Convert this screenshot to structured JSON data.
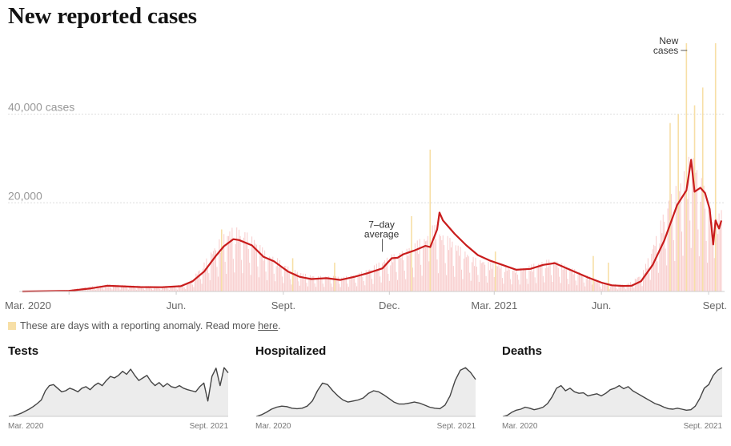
{
  "title": "New reported cases",
  "note": {
    "text": "These are days with a reporting anomaly. Read more ",
    "link": "here",
    "end": ".",
    "swatch_color": "#f7dfa6"
  },
  "colors": {
    "bars": "#f8cccc",
    "anomaly": "#f7dfa6",
    "average_line": "#c91c1c",
    "mini_line": "#444444",
    "mini_fill": "#ececec",
    "gridline": "#dddddd"
  },
  "chart_data": [
    {
      "type": "line",
      "title": "New reported cases",
      "x_domain": [
        "2020-01-21",
        "2021-09-12"
      ],
      "ylim": [
        0,
        56000
      ],
      "y_ticks": [
        {
          "value": 20000,
          "label": "20,000"
        },
        {
          "value": 40000,
          "label": "40,000 cases"
        }
      ],
      "x_ticks": [
        {
          "date": "2020-03-01",
          "label": "Mar. 2020"
        },
        {
          "date": "2020-06-01",
          "label": "Jun."
        },
        {
          "date": "2020-09-01",
          "label": "Sept."
        },
        {
          "date": "2020-12-01",
          "label": "Dec."
        },
        {
          "date": "2021-03-01",
          "label": "Mar. 2021"
        },
        {
          "date": "2021-06-01",
          "label": "Jun."
        },
        {
          "date": "2021-09-01",
          "label": "Sept."
        }
      ],
      "annotations": [
        {
          "lines": [
            "7–day",
            "average"
          ],
          "target_date": "2020-11-25",
          "target_value": 8600
        },
        {
          "lines": [
            "New",
            "cases"
          ],
          "target_date": "2021-08-15",
          "target_value": 56000
        }
      ],
      "series": [
        {
          "name": "New cases",
          "kind": "bars",
          "points": [
            [
              "2020-01-21",
              0
            ],
            [
              "2020-03-01",
              300
            ],
            [
              "2020-03-15",
              900
            ],
            [
              "2020-03-28",
              1200
            ],
            [
              "2020-04-06",
              1400
            ],
            [
              "2020-04-25",
              1150
            ],
            [
              "2020-05-15",
              1000
            ],
            [
              "2020-05-31",
              1100
            ],
            [
              "2020-06-12",
              1700
            ],
            [
              "2020-06-25",
              5500
            ],
            [
              "2020-07-05",
              9000
            ],
            [
              "2020-07-12",
              11000
            ],
            [
              "2020-07-20",
              12300
            ],
            [
              "2020-07-28",
              11800
            ],
            [
              "2020-08-08",
              10000
            ],
            [
              "2020-08-18",
              7200
            ],
            [
              "2020-08-25",
              6600
            ],
            [
              "2020-09-05",
              4800
            ],
            [
              "2020-09-18",
              3400
            ],
            [
              "2020-10-01",
              2900
            ],
            [
              "2020-10-10",
              3000
            ],
            [
              "2020-10-22",
              2800
            ],
            [
              "2020-11-01",
              3200
            ],
            [
              "2020-11-10",
              4000
            ],
            [
              "2020-11-20",
              5200
            ],
            [
              "2020-12-01",
              6800
            ],
            [
              "2020-12-08",
              7400
            ],
            [
              "2020-12-15",
              7900
            ],
            [
              "2020-12-24",
              9500
            ],
            [
              "2021-01-02",
              10600
            ],
            [
              "2021-01-08",
              12800
            ],
            [
              "2021-01-15",
              11000
            ],
            [
              "2021-01-22",
              10200
            ],
            [
              "2021-02-02",
              8000
            ],
            [
              "2021-02-12",
              6400
            ],
            [
              "2021-02-25",
              5600
            ],
            [
              "2021-03-10",
              5000
            ],
            [
              "2021-03-20",
              4300
            ],
            [
              "2021-04-01",
              5000
            ],
            [
              "2021-04-10",
              5700
            ],
            [
              "2021-04-20",
              6200
            ],
            [
              "2021-05-01",
              5000
            ],
            [
              "2021-05-15",
              3600
            ],
            [
              "2021-06-01",
              1700
            ],
            [
              "2021-06-10",
              1400
            ],
            [
              "2021-06-18",
              1300
            ],
            [
              "2021-06-25",
              1600
            ],
            [
              "2021-07-06",
              3500
            ],
            [
              "2021-07-14",
              8000
            ],
            [
              "2021-07-20",
              12000
            ],
            [
              "2021-07-28",
              17500
            ],
            [
              "2021-08-04",
              20000
            ],
            [
              "2021-08-10",
              23000
            ],
            [
              "2021-08-14",
              24000
            ],
            [
              "2021-08-17",
              28000
            ],
            [
              "2021-08-22",
              24000
            ],
            [
              "2021-08-28",
              20000
            ],
            [
              "2021-09-01",
              18000
            ],
            [
              "2021-09-05",
              12000
            ],
            [
              "2021-09-12",
              16000
            ]
          ],
          "anomalies": [
            [
              "2020-07-10",
              14000
            ],
            [
              "2020-09-09",
              7500
            ],
            [
              "2020-10-15",
              6500
            ],
            [
              "2020-12-20",
              17000
            ],
            [
              "2021-01-05",
              32000
            ],
            [
              "2021-03-02",
              9000
            ],
            [
              "2021-05-25",
              8000
            ],
            [
              "2021-06-07",
              6500
            ],
            [
              "2021-07-30",
              38000
            ],
            [
              "2021-08-06",
              40000
            ],
            [
              "2021-08-13",
              56000
            ],
            [
              "2021-08-20",
              42000
            ],
            [
              "2021-08-27",
              46000
            ],
            [
              "2021-09-07",
              56000
            ]
          ]
        },
        {
          "name": "7–day average",
          "kind": "line",
          "points": [
            [
              "2020-01-21",
              0
            ],
            [
              "2020-03-01",
              150
            ],
            [
              "2020-03-20",
              700
            ],
            [
              "2020-04-03",
              1300
            ],
            [
              "2020-04-12",
              1200
            ],
            [
              "2020-05-01",
              1000
            ],
            [
              "2020-05-20",
              950
            ],
            [
              "2020-06-05",
              1200
            ],
            [
              "2020-06-15",
              2300
            ],
            [
              "2020-06-25",
              4500
            ],
            [
              "2020-07-05",
              8000
            ],
            [
              "2020-07-12",
              10200
            ],
            [
              "2020-07-20",
              11800
            ],
            [
              "2020-07-25",
              11600
            ],
            [
              "2020-08-05",
              10400
            ],
            [
              "2020-08-15",
              7800
            ],
            [
              "2020-08-24",
              6800
            ],
            [
              "2020-09-05",
              4500
            ],
            [
              "2020-09-15",
              3300
            ],
            [
              "2020-09-25",
              2800
            ],
            [
              "2020-10-08",
              3000
            ],
            [
              "2020-10-20",
              2600
            ],
            [
              "2020-11-01",
              3300
            ],
            [
              "2020-11-12",
              4100
            ],
            [
              "2020-11-25",
              5200
            ],
            [
              "2020-12-03",
              7500
            ],
            [
              "2020-12-08",
              7600
            ],
            [
              "2020-12-13",
              8400
            ],
            [
              "2020-12-22",
              9200
            ],
            [
              "2021-01-01",
              10300
            ],
            [
              "2021-01-05",
              10000
            ],
            [
              "2021-01-11",
              14000
            ],
            [
              "2021-01-13",
              17800
            ],
            [
              "2021-01-16",
              16000
            ],
            [
              "2021-01-26",
              13000
            ],
            [
              "2021-02-05",
              10400
            ],
            [
              "2021-02-15",
              8200
            ],
            [
              "2021-02-25",
              7000
            ],
            [
              "2021-03-08",
              6000
            ],
            [
              "2021-03-20",
              4900
            ],
            [
              "2021-04-01",
              5100
            ],
            [
              "2021-04-12",
              6000
            ],
            [
              "2021-04-22",
              6400
            ],
            [
              "2021-05-05",
              4900
            ],
            [
              "2021-05-20",
              3200
            ],
            [
              "2021-06-01",
              2000
            ],
            [
              "2021-06-10",
              1400
            ],
            [
              "2021-06-20",
              1250
            ],
            [
              "2021-06-27",
              1300
            ],
            [
              "2021-07-05",
              2300
            ],
            [
              "2021-07-15",
              6000
            ],
            [
              "2021-07-25",
              11500
            ],
            [
              "2021-08-05",
              19500
            ],
            [
              "2021-08-13",
              22800
            ],
            [
              "2021-08-17",
              29700
            ],
            [
              "2021-08-20",
              22500
            ],
            [
              "2021-08-25",
              23400
            ],
            [
              "2021-08-29",
              22200
            ],
            [
              "2021-09-02",
              18600
            ],
            [
              "2021-09-05",
              10600
            ],
            [
              "2021-09-07",
              16000
            ],
            [
              "2021-09-10",
              14200
            ],
            [
              "2021-09-12",
              16000
            ]
          ]
        }
      ]
    },
    {
      "type": "area",
      "title": "Tests",
      "x_labels": [
        "Mar. 2020",
        "Sept. 2021"
      ],
      "ylim": [
        0,
        100
      ],
      "series": [
        {
          "values": [
            0,
            1,
            3,
            6,
            10,
            14,
            19,
            25,
            32,
            50,
            60,
            62,
            55,
            48,
            50,
            55,
            52,
            48,
            55,
            58,
            52,
            60,
            65,
            60,
            70,
            78,
            75,
            80,
            88,
            82,
            92,
            80,
            70,
            75,
            80,
            68,
            60,
            66,
            58,
            64,
            58,
            56,
            60,
            55,
            52,
            50,
            48,
            58,
            65,
            30,
            78,
            94,
            60,
            95,
            85
          ]
        }
      ]
    },
    {
      "type": "area",
      "title": "Hospitalized",
      "x_labels": [
        "Mar. 2020",
        "Sept. 2021"
      ],
      "ylim": [
        0,
        100
      ],
      "series": [
        {
          "values": [
            0,
            3,
            8,
            14,
            18,
            20,
            19,
            16,
            15,
            16,
            20,
            30,
            50,
            65,
            62,
            50,
            40,
            32,
            28,
            30,
            32,
            36,
            45,
            50,
            48,
            42,
            35,
            28,
            24,
            24,
            26,
            28,
            26,
            22,
            18,
            16,
            15,
            22,
            40,
            70,
            90,
            95,
            86,
            72
          ]
        }
      ]
    },
    {
      "type": "area",
      "title": "Deaths",
      "x_labels": [
        "Mar. 2020",
        "Sept. 2021"
      ],
      "ylim": [
        0,
        100
      ],
      "series": [
        {
          "values": [
            0,
            2,
            8,
            12,
            14,
            18,
            16,
            13,
            15,
            18,
            25,
            38,
            55,
            60,
            50,
            55,
            48,
            45,
            46,
            40,
            42,
            44,
            40,
            45,
            52,
            55,
            60,
            54,
            58,
            50,
            45,
            40,
            35,
            30,
            25,
            22,
            18,
            15,
            14,
            16,
            14,
            12,
            13,
            20,
            35,
            55,
            62,
            80,
            90,
            95
          ]
        }
      ]
    }
  ]
}
